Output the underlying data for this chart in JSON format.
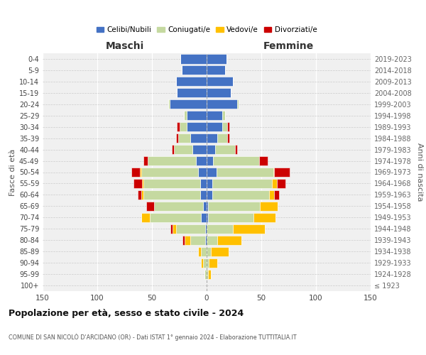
{
  "age_groups": [
    "100+",
    "95-99",
    "90-94",
    "85-89",
    "80-84",
    "75-79",
    "70-74",
    "65-69",
    "60-64",
    "55-59",
    "50-54",
    "45-49",
    "40-44",
    "35-39",
    "30-34",
    "25-29",
    "20-24",
    "15-19",
    "10-14",
    "5-9",
    "0-4"
  ],
  "birth_years": [
    "≤ 1923",
    "1924-1928",
    "1929-1933",
    "1934-1938",
    "1939-1943",
    "1944-1948",
    "1949-1953",
    "1954-1958",
    "1959-1963",
    "1964-1968",
    "1969-1973",
    "1974-1978",
    "1979-1983",
    "1984-1988",
    "1989-1993",
    "1994-1998",
    "1999-2003",
    "2004-2008",
    "2009-2013",
    "2014-2018",
    "2019-2023"
  ],
  "maschi": {
    "celibi": [
      0,
      0,
      0,
      0,
      1,
      1,
      5,
      3,
      6,
      6,
      8,
      10,
      13,
      15,
      18,
      18,
      34,
      27,
      28,
      23,
      24
    ],
    "coniugati": [
      0,
      2,
      3,
      5,
      14,
      27,
      47,
      45,
      52,
      52,
      52,
      44,
      17,
      11,
      7,
      3,
      1,
      0,
      0,
      0,
      0
    ],
    "vedovi": [
      0,
      0,
      2,
      3,
      5,
      3,
      8,
      0,
      2,
      1,
      1,
      0,
      0,
      0,
      0,
      0,
      0,
      0,
      0,
      0,
      0
    ],
    "divorziati": [
      0,
      0,
      0,
      0,
      2,
      2,
      0,
      7,
      3,
      8,
      8,
      4,
      2,
      2,
      2,
      0,
      0,
      0,
      0,
      0,
      0
    ]
  },
  "femmine": {
    "nubili": [
      0,
      0,
      0,
      0,
      0,
      0,
      1,
      1,
      5,
      5,
      9,
      6,
      8,
      10,
      14,
      14,
      28,
      22,
      24,
      17,
      18
    ],
    "coniugate": [
      0,
      1,
      2,
      4,
      10,
      24,
      42,
      48,
      52,
      55,
      52,
      42,
      18,
      9,
      5,
      3,
      1,
      0,
      0,
      0,
      0
    ],
    "vedove": [
      0,
      3,
      8,
      16,
      22,
      29,
      20,
      16,
      5,
      4,
      1,
      0,
      0,
      0,
      0,
      0,
      0,
      0,
      0,
      0,
      0
    ],
    "divorziate": [
      0,
      0,
      0,
      0,
      0,
      0,
      0,
      0,
      4,
      8,
      14,
      8,
      2,
      2,
      2,
      0,
      0,
      0,
      0,
      0,
      0
    ]
  },
  "colors": {
    "celibi": "#4472c4",
    "coniugati": "#c5d9a0",
    "vedovi": "#ffc000",
    "divorziati": "#cc0000"
  },
  "legend_labels": [
    "Celibi/Nubili",
    "Coniugati/e",
    "Vedovi/e",
    "Divorziati/e"
  ],
  "title": "Popolazione per età, sesso e stato civile - 2024",
  "subtitle": "COMUNE DI SAN NICOLÒ D'ARCIDANO (OR) - Dati ISTAT 1° gennaio 2024 - Elaborazione TUTTITALIA.IT",
  "xlim": 150,
  "maschi_label": "Maschi",
  "femmine_label": "Femmine",
  "fasce_label": "Fasce di età",
  "anni_label": "Anni di nascita",
  "bg_color": "#f0f0f0"
}
